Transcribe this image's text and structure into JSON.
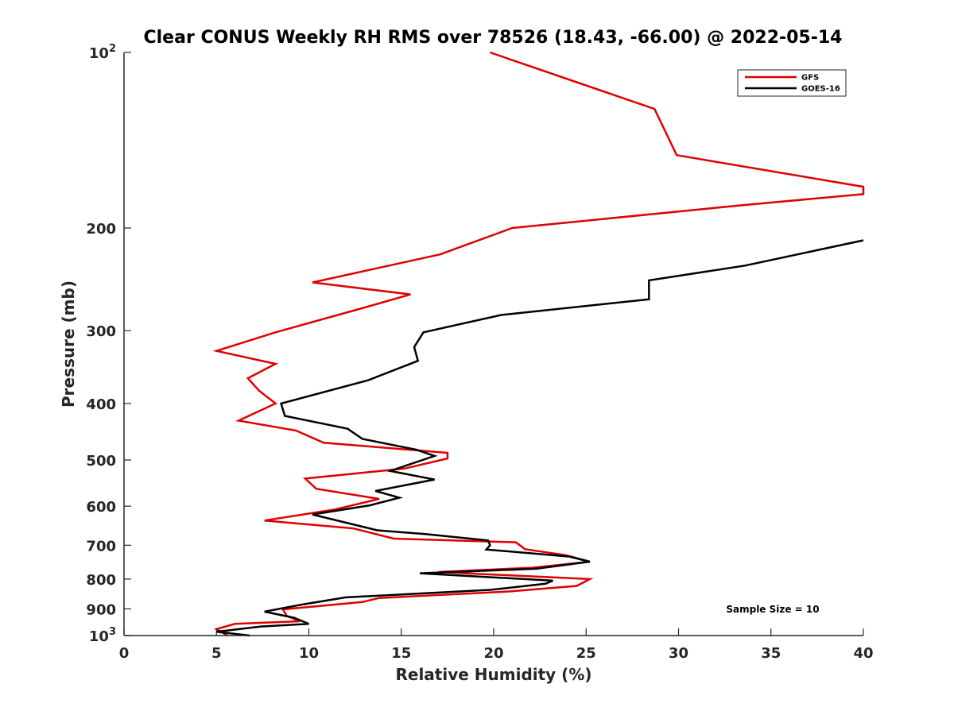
{
  "chart_data": {
    "type": "line",
    "title": "Clear CONUS Weekly RH RMS over 78526 (18.43, -66.00) @ 2022-05-14",
    "xlabel": "Relative Humidity (%)",
    "ylabel": "Pressure (mb)",
    "xlim": [
      0,
      40
    ],
    "ylim": [
      1000,
      100
    ],
    "yscale": "log",
    "y_reversed": true,
    "x_ticks": [
      "0",
      "5",
      "10",
      "15",
      "20",
      "25",
      "30",
      "35",
      "40"
    ],
    "y_ticks": [
      {
        "value": 100,
        "label": "10",
        "exp": "2"
      },
      {
        "value": 200,
        "label": "200"
      },
      {
        "value": 300,
        "label": "300"
      },
      {
        "value": 400,
        "label": "400"
      },
      {
        "value": 500,
        "label": "500"
      },
      {
        "value": 600,
        "label": "600"
      },
      {
        "value": 700,
        "label": "700"
      },
      {
        "value": 800,
        "label": "800"
      },
      {
        "value": 900,
        "label": "900"
      },
      {
        "value": 1000,
        "label": "10",
        "exp": "3"
      }
    ],
    "grid": false,
    "legend_position": "top-right",
    "annotation": "Sample Size = 10",
    "series": [
      {
        "name": "GFS",
        "color": "#e00000",
        "points": [
          [
            19.8,
            100
          ],
          [
            28.7,
            125
          ],
          [
            29.9,
            150
          ],
          [
            40.0,
            170
          ],
          [
            40.0,
            175
          ],
          [
            33.3,
            183
          ],
          [
            21.0,
            200
          ],
          [
            17.1,
            222
          ],
          [
            10.2,
            248
          ],
          [
            15.5,
            260
          ],
          [
            12.8,
            275
          ],
          [
            8.2,
            302
          ],
          [
            5.0,
            325
          ],
          [
            8.2,
            342
          ],
          [
            6.7,
            362
          ],
          [
            7.3,
            380
          ],
          [
            8.2,
            400
          ],
          [
            6.2,
            428
          ],
          [
            9.3,
            445
          ],
          [
            10.8,
            467
          ],
          [
            17.5,
            486
          ],
          [
            17.5,
            497
          ],
          [
            15.2,
            517
          ],
          [
            9.8,
            538
          ],
          [
            10.4,
            560
          ],
          [
            13.8,
            583
          ],
          [
            11.4,
            608
          ],
          [
            7.6,
            635
          ],
          [
            12.4,
            655
          ],
          [
            14.6,
            682
          ],
          [
            21.2,
            692
          ],
          [
            21.7,
            711
          ],
          [
            23.9,
            728
          ],
          [
            25.2,
            747
          ],
          [
            22.1,
            765
          ],
          [
            17.0,
            778
          ],
          [
            25.2,
            800
          ],
          [
            24.5,
            822
          ],
          [
            20.9,
            840
          ],
          [
            13.8,
            862
          ],
          [
            12.9,
            876
          ],
          [
            8.6,
            902
          ],
          [
            8.8,
            925
          ],
          [
            9.5,
            945
          ],
          [
            6.0,
            955
          ],
          [
            5.0,
            975
          ],
          [
            5.6,
            1000
          ]
        ]
      },
      {
        "name": "GOES-16",
        "color": "#000000",
        "points": [
          [
            40.0,
            210
          ],
          [
            33.6,
            232
          ],
          [
            28.4,
            246
          ],
          [
            28.4,
            265
          ],
          [
            20.4,
            282
          ],
          [
            16.2,
            302
          ],
          [
            15.7,
            320
          ],
          [
            15.9,
            338
          ],
          [
            13.2,
            365
          ],
          [
            8.5,
            400
          ],
          [
            8.7,
            420
          ],
          [
            12.1,
            442
          ],
          [
            12.9,
            460
          ],
          [
            15.8,
            480
          ],
          [
            16.8,
            492
          ],
          [
            14.4,
            522
          ],
          [
            16.8,
            540
          ],
          [
            13.6,
            565
          ],
          [
            14.9,
            580
          ],
          [
            13.3,
            598
          ],
          [
            10.2,
            620
          ],
          [
            13.7,
            660
          ],
          [
            16.3,
            670
          ],
          [
            19.7,
            687
          ],
          [
            19.8,
            700
          ],
          [
            19.6,
            712
          ],
          [
            24.1,
            732
          ],
          [
            25.2,
            747
          ],
          [
            22.3,
            768
          ],
          [
            16.0,
            782
          ],
          [
            23.2,
            805
          ],
          [
            22.8,
            815
          ],
          [
            19.8,
            835
          ],
          [
            12.0,
            860
          ],
          [
            9.6,
            885
          ],
          [
            7.6,
            910
          ],
          [
            9.2,
            932
          ],
          [
            10.0,
            955
          ],
          [
            7.4,
            965
          ],
          [
            5.0,
            985
          ],
          [
            6.8,
            1000
          ]
        ]
      }
    ]
  }
}
